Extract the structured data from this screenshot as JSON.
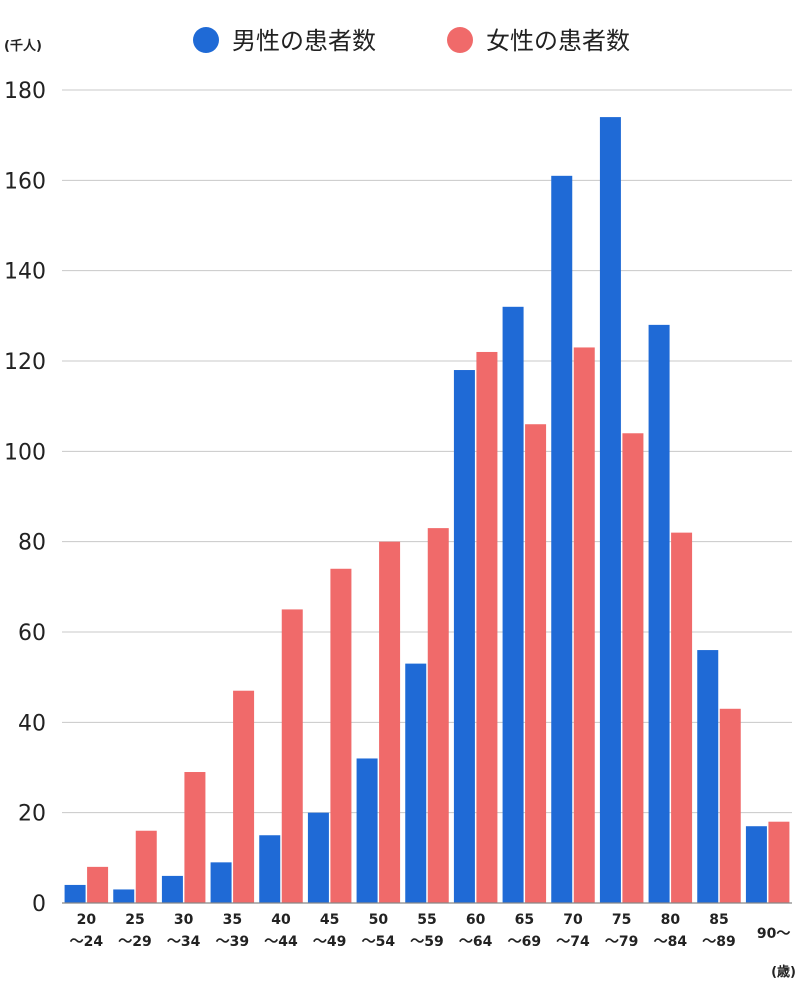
{
  "chart_data": {
    "type": "bar",
    "categories": [
      [
        "20",
        "〜24"
      ],
      [
        "25",
        "〜29"
      ],
      [
        "30",
        "〜34"
      ],
      [
        "35",
        "〜39"
      ],
      [
        "40",
        "〜44"
      ],
      [
        "45",
        "〜49"
      ],
      [
        "50",
        "〜54"
      ],
      [
        "55",
        "〜59"
      ],
      [
        "60",
        "〜64"
      ],
      [
        "65",
        "〜69"
      ],
      [
        "70",
        "〜74"
      ],
      [
        "75",
        "〜79"
      ],
      [
        "80",
        "〜84"
      ],
      [
        "85",
        "〜89"
      ],
      [
        "90〜"
      ]
    ],
    "series": [
      {
        "name": "男性の患者数",
        "color": "#1f6ad6",
        "values": [
          4,
          3,
          6,
          9,
          15,
          20,
          32,
          53,
          118,
          132,
          161,
          174,
          128,
          56,
          17
        ]
      },
      {
        "name": "女性の患者数",
        "color": "#f06a6a",
        "values": [
          8,
          16,
          29,
          47,
          65,
          74,
          80,
          83,
          122,
          106,
          123,
          104,
          82,
          43,
          18
        ]
      }
    ],
    "ylim": [
      0,
      180
    ],
    "yticks": [
      0,
      20,
      40,
      60,
      80,
      100,
      120,
      140,
      160,
      180
    ],
    "y_unit": "(千人)",
    "x_unit": "(歳)",
    "grid": true,
    "legend_position": "top-center"
  }
}
